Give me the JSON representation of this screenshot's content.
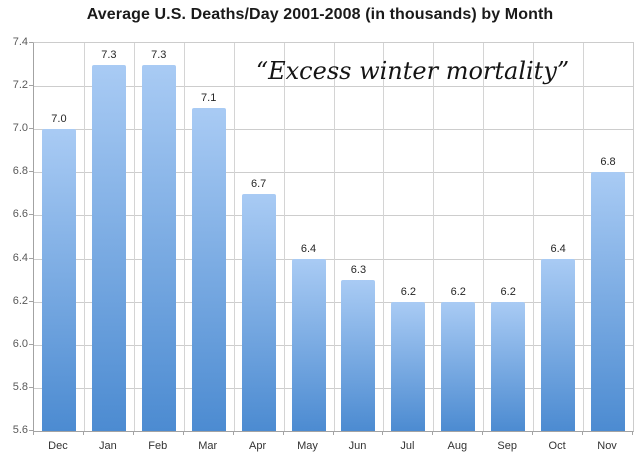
{
  "chart_data": {
    "type": "bar",
    "title": "Average U.S. Deaths/Day 2001-2008 (in thousands) by Month",
    "categories": [
      "Dec",
      "Jan",
      "Feb",
      "Mar",
      "Apr",
      "May",
      "Jun",
      "Jul",
      "Aug",
      "Sep",
      "Oct",
      "Nov"
    ],
    "values": [
      7.0,
      7.3,
      7.3,
      7.1,
      6.7,
      6.4,
      6.3,
      6.2,
      6.2,
      6.2,
      6.4,
      6.8
    ],
    "value_labels": [
      "7.0",
      "7.3",
      "7.3",
      "7.1",
      "6.7",
      "6.4",
      "6.3",
      "6.2",
      "6.2",
      "6.2",
      "6.4",
      "6.8"
    ],
    "xlabel": "",
    "ylabel": "",
    "ylim": [
      5.6,
      7.4
    ],
    "ytick_step": 0.2,
    "ytick_labels": [
      "7.4",
      "7.2",
      "7.0",
      "6.8",
      "6.6",
      "6.4",
      "6.2",
      "6.0",
      "5.8",
      "5.6"
    ],
    "grid": true,
    "legend": false,
    "annotation": "“Excess winter mortality”"
  },
  "colors": {
    "bar_gradient_top": "#a9cbf4",
    "bar_gradient_bottom": "#4c8bd1",
    "gridline": "#cdcdcd",
    "axis": "#a3a3a3",
    "title_text": "#1a1a1a",
    "bar_value_text": "#262626",
    "axis_label_text": "#595959",
    "month_label_text": "#333333",
    "background": "#ffffff"
  }
}
